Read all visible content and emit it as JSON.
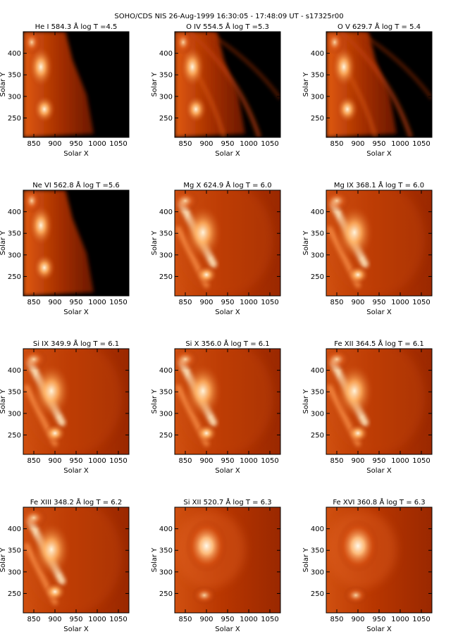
{
  "figure": {
    "title": "SOHO/CDS NIS  26-Aug-1999 16:30:05 - 17:48:09 UT - s17325r00"
  },
  "colors": {
    "background": "#ffffff",
    "axis": "#000000",
    "colormap_low": "#000000",
    "colormap_mid": "#b22a00",
    "colormap_high": "#fff0d0"
  },
  "chart_data": [
    {
      "type": "heatmap",
      "title": "He I  584.3 Å log T =4.5",
      "xlabel": "Solar X",
      "ylabel": "Solar Y",
      "xticks": [
        850,
        900,
        950,
        1000,
        1050
      ],
      "yticks": [
        250,
        300,
        350,
        400
      ],
      "xlim": [
        825,
        1075
      ],
      "ylim": [
        205,
        450
      ],
      "colorscale": "red-temperature",
      "morphology": "cool-limb"
    },
    {
      "type": "heatmap",
      "title": "O IV  554.5 Å log T =5.3",
      "xlabel": "Solar X",
      "ylabel": "Solar Y",
      "xticks": [
        850,
        900,
        950,
        1000,
        1050
      ],
      "yticks": [
        250,
        300,
        350,
        400
      ],
      "xlim": [
        825,
        1075
      ],
      "ylim": [
        205,
        450
      ],
      "colorscale": "red-temperature",
      "morphology": "loops"
    },
    {
      "type": "heatmap",
      "title": "O V  629.7 Å log T = 5.4",
      "xlabel": "Solar X",
      "ylabel": "Solar Y",
      "xticks": [
        850,
        900,
        950,
        1000,
        1050
      ],
      "yticks": [
        250,
        300,
        350,
        400
      ],
      "xlim": [
        825,
        1075
      ],
      "ylim": [
        205,
        450
      ],
      "colorscale": "red-temperature",
      "morphology": "loops"
    },
    {
      "type": "heatmap",
      "title": "Ne VI  562.8 Å log T =5.6",
      "xlabel": "Solar X",
      "ylabel": "Solar Y",
      "xticks": [
        850,
        900,
        950,
        1000,
        1050
      ],
      "yticks": [
        250,
        300,
        350,
        400
      ],
      "xlim": [
        825,
        1075
      ],
      "ylim": [
        205,
        450
      ],
      "colorscale": "red-temperature",
      "morphology": "cool-limb"
    },
    {
      "type": "heatmap",
      "title": "Mg X  624.9 Å log T = 6.0",
      "xlabel": "Solar X",
      "ylabel": "Solar Y",
      "xticks": [
        850,
        900,
        950,
        1000,
        1050
      ],
      "yticks": [
        250,
        300,
        350,
        400
      ],
      "xlim": [
        825,
        1075
      ],
      "ylim": [
        205,
        450
      ],
      "colorscale": "red-temperature",
      "morphology": "hot-diffuse"
    },
    {
      "type": "heatmap",
      "title": "Mg IX  368.1 Å log T = 6.0",
      "xlabel": "Solar X",
      "ylabel": "Solar Y",
      "xticks": [
        850,
        900,
        950,
        1000,
        1050
      ],
      "yticks": [
        250,
        300,
        350,
        400
      ],
      "xlim": [
        825,
        1075
      ],
      "ylim": [
        205,
        450
      ],
      "colorscale": "red-temperature",
      "morphology": "hot-diffuse"
    },
    {
      "type": "heatmap",
      "title": "Si IX  349.9 Å log T = 6.1",
      "xlabel": "Solar X",
      "ylabel": "Solar Y",
      "xticks": [
        850,
        900,
        950,
        1000,
        1050
      ],
      "yticks": [
        250,
        300,
        350,
        400
      ],
      "xlim": [
        825,
        1075
      ],
      "ylim": [
        205,
        450
      ],
      "colorscale": "red-temperature",
      "morphology": "hot-diffuse"
    },
    {
      "type": "heatmap",
      "title": "Si X  356.0 Å log T = 6.1",
      "xlabel": "Solar X",
      "ylabel": "Solar Y",
      "xticks": [
        850,
        900,
        950,
        1000,
        1050
      ],
      "yticks": [
        250,
        300,
        350,
        400
      ],
      "xlim": [
        825,
        1075
      ],
      "ylim": [
        205,
        450
      ],
      "colorscale": "red-temperature",
      "morphology": "hot-diffuse"
    },
    {
      "type": "heatmap",
      "title": "Fe XII  364.5 Å log T = 6.1",
      "xlabel": "Solar X",
      "ylabel": "Solar Y",
      "xticks": [
        850,
        900,
        950,
        1000,
        1050
      ],
      "yticks": [
        250,
        300,
        350,
        400
      ],
      "xlim": [
        825,
        1075
      ],
      "ylim": [
        205,
        450
      ],
      "colorscale": "red-temperature",
      "morphology": "hot-diffuse"
    },
    {
      "type": "heatmap",
      "title": "Fe XIII  348.2 Å log T = 6.2",
      "xlabel": "Solar X",
      "ylabel": "Solar Y",
      "xticks": [
        850,
        900,
        950,
        1000,
        1050
      ],
      "yticks": [
        250,
        300,
        350,
        400
      ],
      "xlim": [
        825,
        1075
      ],
      "ylim": [
        205,
        450
      ],
      "colorscale": "red-temperature",
      "morphology": "hot-diffuse"
    },
    {
      "type": "heatmap",
      "title": "Si XII  520.7 Å log T = 6.3",
      "xlabel": "Solar X",
      "ylabel": "Solar Y",
      "xticks": [
        850,
        900,
        950,
        1000,
        1050
      ],
      "yticks": [
        250,
        300,
        350,
        400
      ],
      "xlim": [
        825,
        1075
      ],
      "ylim": [
        205,
        450
      ],
      "colorscale": "red-temperature",
      "morphology": "hot-blob"
    },
    {
      "type": "heatmap",
      "title": "Fe XVI  360.8 Å log T = 6.3",
      "xlabel": "Solar X",
      "ylabel": "Solar Y",
      "xticks": [
        850,
        900,
        950,
        1000,
        1050
      ],
      "yticks": [
        250,
        300,
        350,
        400
      ],
      "xlim": [
        825,
        1075
      ],
      "ylim": [
        205,
        450
      ],
      "colorscale": "red-temperature",
      "morphology": "hot-blob"
    }
  ]
}
